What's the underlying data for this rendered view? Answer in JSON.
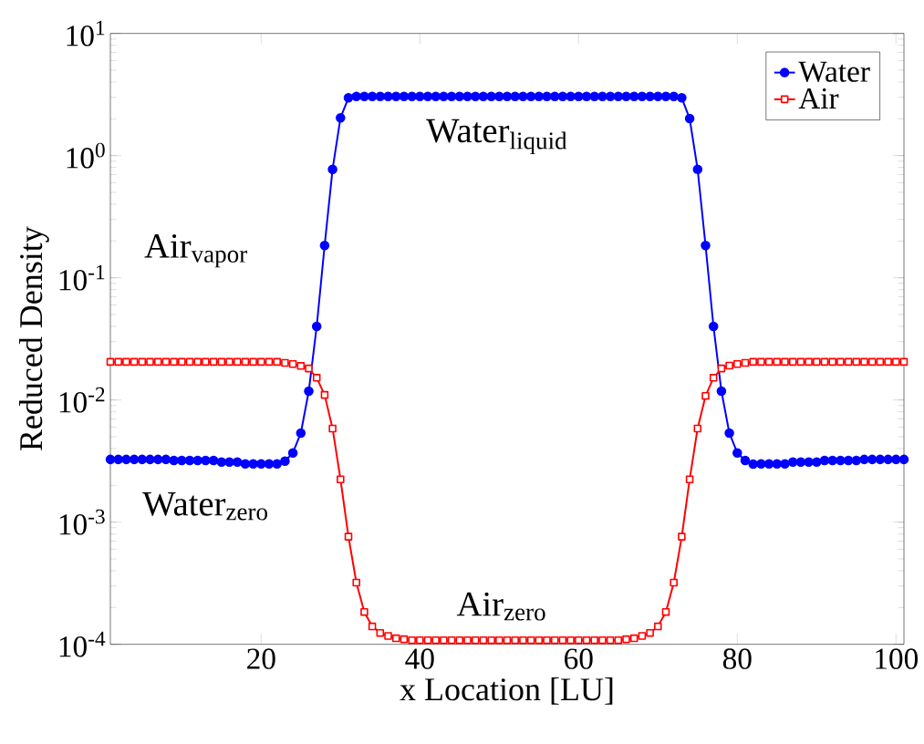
{
  "chart_data": {
    "type": "line",
    "xlabel": "x Location [LU]",
    "ylabel": "Reduced Density",
    "log": "y",
    "xlim": [
      1,
      101
    ],
    "xticks": [
      20,
      40,
      60,
      80,
      100
    ],
    "ylim": [
      0.0001,
      10
    ],
    "yticks": [
      {
        "value": 0.0001,
        "label": "10$^{-4}$"
      },
      {
        "value": 0.001,
        "label": "10$^{-3}$"
      },
      {
        "value": 0.01,
        "label": "10$^{-2}$"
      },
      {
        "value": 0.1,
        "label": "10$^{-1}$"
      },
      {
        "value": 1,
        "label": "10$^{0}$"
      },
      {
        "value": 10,
        "label": "10$^{1}$"
      }
    ],
    "legend": "top right",
    "x": [
      1,
      2,
      3,
      4,
      5,
      6,
      7,
      8,
      9,
      10,
      11,
      12,
      13,
      14,
      15,
      16,
      17,
      18,
      19,
      20,
      21,
      22,
      23,
      24,
      25,
      26,
      27,
      28,
      29,
      30,
      31,
      32,
      33,
      34,
      35,
      36,
      37,
      38,
      39,
      40,
      41,
      42,
      43,
      44,
      45,
      46,
      47,
      48,
      49,
      50,
      51,
      52,
      53,
      54,
      55,
      56,
      57,
      58,
      59,
      60,
      61,
      62,
      63,
      64,
      65,
      66,
      67,
      68,
      69,
      70,
      71,
      72,
      73,
      74,
      75,
      76,
      77,
      78,
      79,
      80,
      81,
      82,
      83,
      84,
      85,
      86,
      87,
      88,
      89,
      90,
      91,
      92,
      93,
      94,
      95,
      96,
      97,
      98,
      99,
      100,
      101
    ],
    "series": [
      {
        "name": "Water",
        "color": "#0000ff",
        "marker": "circle",
        "values": [
          0.00326,
          0.00326,
          0.00326,
          0.00326,
          0.00326,
          0.00326,
          0.00326,
          0.00326,
          0.0032,
          0.0032,
          0.0032,
          0.0032,
          0.0032,
          0.0032,
          0.0031,
          0.0031,
          0.0031,
          0.003,
          0.003,
          0.003,
          0.003,
          0.003,
          0.00316,
          0.00369,
          0.00536,
          0.0118,
          0.04,
          0.184,
          0.773,
          2.04,
          2.97,
          3.05,
          3.05,
          3.05,
          3.05,
          3.05,
          3.05,
          3.05,
          3.05,
          3.05,
          3.05,
          3.05,
          3.05,
          3.05,
          3.05,
          3.05,
          3.05,
          3.05,
          3.05,
          3.05,
          3.05,
          3.05,
          3.05,
          3.05,
          3.05,
          3.05,
          3.05,
          3.05,
          3.05,
          3.05,
          3.05,
          3.05,
          3.05,
          3.05,
          3.05,
          3.05,
          3.05,
          3.05,
          3.05,
          3.05,
          3.05,
          3.05,
          2.97,
          2.01,
          0.773,
          0.184,
          0.04,
          0.0118,
          0.00536,
          0.00369,
          0.0032,
          0.00299,
          0.003,
          0.003,
          0.003,
          0.003,
          0.0031,
          0.0031,
          0.0031,
          0.0031,
          0.0032,
          0.0032,
          0.0032,
          0.0032,
          0.0032,
          0.00326,
          0.00326,
          0.00326,
          0.00326,
          0.00326,
          0.00326
        ]
      },
      {
        "name": "Air",
        "color": "#ff0000",
        "marker": "square",
        "values": [
          0.0205,
          0.0205,
          0.0205,
          0.0205,
          0.0205,
          0.0205,
          0.0205,
          0.0205,
          0.0205,
          0.0205,
          0.0205,
          0.0205,
          0.0205,
          0.0205,
          0.0205,
          0.0205,
          0.0205,
          0.0205,
          0.0205,
          0.0205,
          0.0205,
          0.0205,
          0.0201,
          0.0197,
          0.019,
          0.0181,
          0.0152,
          0.011,
          0.00584,
          0.00224,
          0.00076,
          0.00032,
          0.000184,
          0.00014,
          0.000124,
          0.000117,
          0.000112,
          0.00011,
          0.000108,
          0.000108,
          0.000108,
          0.000108,
          0.000108,
          0.000108,
          0.000108,
          0.000108,
          0.000108,
          0.000108,
          0.000108,
          0.000108,
          0.000108,
          0.000108,
          0.000108,
          0.000108,
          0.000108,
          0.000108,
          0.000108,
          0.000108,
          0.000108,
          0.000108,
          0.000108,
          0.000108,
          0.000108,
          0.000108,
          0.000108,
          0.00011,
          0.000112,
          0.000117,
          0.000124,
          0.00014,
          0.000184,
          0.00032,
          0.00076,
          0.00224,
          0.00584,
          0.0108,
          0.0152,
          0.0181,
          0.0191,
          0.0197,
          0.0201,
          0.0205,
          0.0205,
          0.0205,
          0.0205,
          0.0205,
          0.0205,
          0.0205,
          0.0205,
          0.0205,
          0.0205,
          0.0205,
          0.0205,
          0.0205,
          0.0205,
          0.0205,
          0.0205,
          0.0205,
          0.0205,
          0.0205,
          0.0205
        ]
      }
    ],
    "annotations": [
      "Water$_{liquid}$",
      "Air$_{vapor}$",
      "Water$_{zero}$",
      "Air$_{zero}$"
    ]
  }
}
